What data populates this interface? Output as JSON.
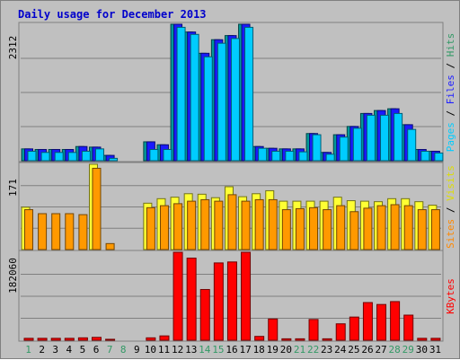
{
  "chart_data": {
    "type": "bar",
    "title": "Daily usage for December 2013",
    "categories": [
      "1",
      "2",
      "3",
      "4",
      "5",
      "6",
      "7",
      "8",
      "9",
      "10",
      "11",
      "12",
      "13",
      "14",
      "15",
      "16",
      "17",
      "18",
      "19",
      "20",
      "21",
      "22",
      "23",
      "24",
      "25",
      "26",
      "27",
      "28",
      "29",
      "30",
      "31"
    ],
    "weekend_days": [
      "1",
      "7",
      "8",
      "14",
      "15",
      "21",
      "22",
      "28",
      "29"
    ],
    "panels": [
      {
        "id": "pages-files-hits",
        "axis_max_label": "2312",
        "ylim": [
          0,
          2312
        ],
        "side_label_parts": [
          {
            "text": "Pages",
            "color": "#00ccff"
          },
          {
            "text": " / ",
            "color": "#000000"
          },
          {
            "text": "Files",
            "color": "#2020ff"
          },
          {
            "text": " / ",
            "color": "#000000"
          },
          {
            "text": "Hits",
            "color": "#339966"
          }
        ],
        "series": [
          {
            "name": "Hits",
            "color": "#009999",
            "values": [
              200,
              190,
              190,
              190,
              240,
              230,
              90,
              0,
              0,
              320,
              270,
              2312,
              2180,
              1820,
              2050,
              2120,
              2312,
              240,
              210,
              200,
              200,
              460,
              140,
              440,
              580,
              800,
              850,
              880,
              610,
              190,
              160
            ]
          },
          {
            "name": "Files",
            "color": "#1a1aff",
            "values": [
              200,
              190,
              190,
              190,
              240,
              230,
              90,
              0,
              0,
              320,
              270,
              2312,
              2180,
              1820,
              2050,
              2120,
              2312,
              240,
              210,
              200,
              200,
              460,
              140,
              440,
              580,
              800,
              850,
              880,
              610,
              190,
              160
            ]
          },
          {
            "name": "Pages",
            "color": "#00ccff",
            "values": [
              160,
              140,
              140,
              140,
              160,
              200,
              40,
              0,
              0,
              190,
              190,
              2260,
              2140,
              1760,
              1990,
              2070,
              2260,
              210,
              160,
              160,
              150,
              440,
              110,
              400,
              550,
              770,
              770,
              800,
              530,
              160,
              130
            ]
          }
        ]
      },
      {
        "id": "visits-sites",
        "axis_max_label": "171",
        "ylim": [
          0,
          171
        ],
        "side_label_parts": [
          {
            "text": "Sites",
            "color": "#ff8800"
          },
          {
            "text": " / ",
            "color": "#000000"
          },
          {
            "text": "Visits",
            "color": "#dddd00"
          }
        ],
        "series": [
          {
            "name": "Visits",
            "color": "#ffff33",
            "values": [
              85,
              0,
              0,
              0,
              0,
              171,
              0,
              0,
              0,
              93,
              102,
              105,
              112,
              111,
              104,
              126,
              106,
              112,
              118,
              97,
              97,
              97,
              97,
              105,
              98,
              97,
              96,
              102,
              102,
              96,
              89
            ]
          },
          {
            "name": "Sites",
            "color": "#ff9900",
            "values": [
              80,
              72,
              72,
              72,
              70,
              163,
              12,
              0,
              0,
              84,
              88,
              92,
              97,
              100,
              97,
              110,
              97,
              100,
              100,
              80,
              82,
              84,
              80,
              88,
              76,
              83,
              88,
              90,
              88,
              80,
              80
            ]
          },
          {
            "name": "Sites-first-days",
            "color": "#ff9900",
            "values": [
              0,
              0,
              0,
              0,
              0,
              0,
              0,
              0,
              0,
              0,
              0,
              0,
              0,
              0,
              0,
              0,
              0,
              0,
              0,
              0,
              0,
              0,
              0,
              0,
              0,
              0,
              0,
              0,
              0,
              0,
              0
            ]
          }
        ]
      },
      {
        "id": "kbytes",
        "axis_max_label": "182060",
        "ylim": [
          0,
          182060
        ],
        "side_label_parts": [
          {
            "text": "KBytes",
            "color": "#ff0000"
          }
        ],
        "series": [
          {
            "name": "KBytes",
            "color": "#ff0000",
            "values": [
              4000,
              4000,
              4000,
              4000,
              5000,
              6000,
              2000,
              0,
              0,
              5000,
              9000,
              182060,
              170000,
              105000,
              160000,
              162000,
              182060,
              8000,
              44000,
              3000,
              3000,
              43000,
              3000,
              34000,
              48000,
              78000,
              74000,
              80000,
              52000,
              4000,
              4000
            ]
          }
        ]
      }
    ]
  },
  "colors": {
    "background": "#c0c0c0",
    "title": "#0000cc",
    "day_normal": "#000000",
    "day_weekend": "#339966",
    "grid": "#808080"
  }
}
